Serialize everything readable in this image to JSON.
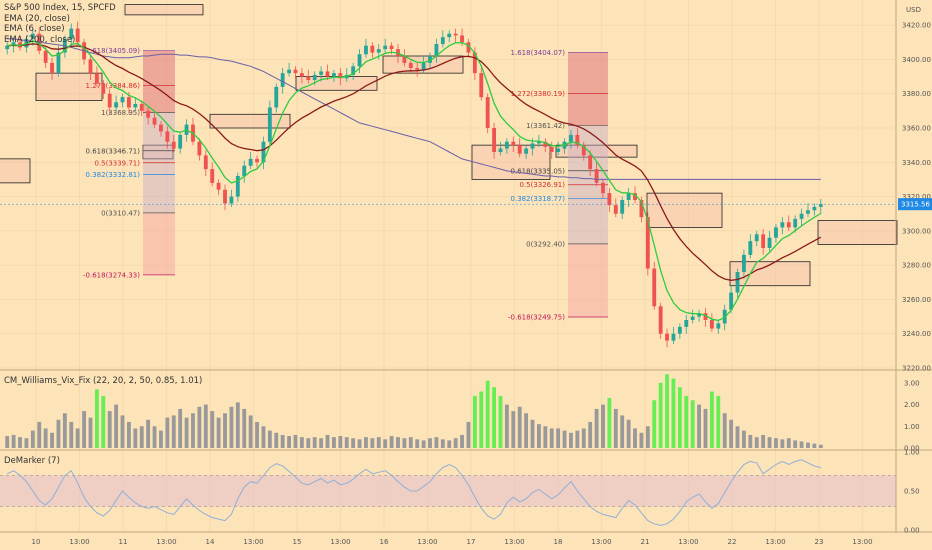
{
  "header": {
    "title": "S&P 500 Index, 15, SPCFD",
    "studies": [
      "EMA (20, close)",
      "EMA (6, close)",
      "EMA (200, close)"
    ]
  },
  "colors": {
    "background": "#fde3b8",
    "up": "#26a69a",
    "down": "#ef5350",
    "ema_fast": "#2ecc40",
    "ema_mid": "#8b1a1a",
    "ema_slow": "#6a5fa8",
    "vix_green": "#66ee55",
    "vix_gray": "#999999",
    "demarker": "#8fb0d8",
    "band": "#e8c4c8",
    "price_tag": "#1e88e5"
  },
  "price_axis": {
    "currency": "USD",
    "ticks": [
      "3420.00",
      "3400.00",
      "3380.00",
      "3360.00",
      "3340.00",
      "3320.00",
      "3300.00",
      "3280.00",
      "3260.00",
      "3240.00",
      "3220.00"
    ],
    "last_price": "3315.56"
  },
  "time_axis": {
    "labels": [
      "10",
      "13:00",
      "11",
      "13:00",
      "14",
      "13:00",
      "15",
      "13:00",
      "16",
      "13:00",
      "17",
      "13:00",
      "18",
      "13:00",
      "21",
      "13:00",
      "22",
      "13:00",
      "23",
      "13:00"
    ]
  },
  "fib_left": {
    "levels": [
      "1.618(3405.09)",
      "1.272(3384.86)",
      "1(3368.95)",
      "0.618(3346.71)",
      "0.5(3339.71)",
      "0.382(3332.81)",
      "0(3310.47)",
      "-0.618(3274.33)"
    ]
  },
  "fib_right": {
    "levels": [
      "1.618(3404.07)",
      "1.272(3380.19)",
      "1(3361.42)",
      "0.618(3335.05)",
      "0.5(3326.91)",
      "0.382(3318.77)",
      "0(3292.40)",
      "-0.618(3249.75)"
    ]
  },
  "vix_pane": {
    "label": "CM_Williams_Vix_Fix (22, 20, 2, 50, 0.85, 1.01)",
    "ticks": [
      "3.00",
      "2.00",
      "1.00",
      "0.00"
    ]
  },
  "demarker_pane": {
    "label": "DeMarker (7)",
    "ticks": [
      "1.00",
      "0.50",
      "0.00"
    ]
  },
  "chart_data": {
    "type": "candlestick",
    "symbol": "S&P 500 Index",
    "interval": "15",
    "ylim": [
      3220,
      3430
    ],
    "closes": [
      3408,
      3410,
      3407,
      3412,
      3415,
      3405,
      3398,
      3392,
      3404,
      3412,
      3418,
      3410,
      3400,
      3392,
      3386,
      3380,
      3372,
      3375,
      3378,
      3372,
      3374,
      3370,
      3366,
      3362,
      3358,
      3352,
      3348,
      3356,
      3362,
      3352,
      3344,
      3336,
      3328,
      3324,
      3316,
      3320,
      3332,
      3338,
      3342,
      3340,
      3352,
      3372,
      3384,
      3392,
      3394,
      3392,
      3390,
      3388,
      3391,
      3393,
      3390,
      3392,
      3389,
      3391,
      3396,
      3403,
      3408,
      3404,
      3406,
      3408,
      3406,
      3402,
      3398,
      3395,
      3394,
      3398,
      3402,
      3409,
      3413,
      3415,
      3414,
      3410,
      3404,
      3392,
      3378,
      3360,
      3346,
      3348,
      3352,
      3350,
      3345,
      3348,
      3351,
      3352,
      3349,
      3346,
      3348,
      3352,
      3356,
      3350,
      3344,
      3336,
      3328,
      3322,
      3315,
      3310,
      3318,
      3322,
      3318,
      3308,
      3278,
      3256,
      3240,
      3236,
      3240,
      3244,
      3248,
      3250,
      3252,
      3248,
      3243,
      3246,
      3254,
      3264,
      3276,
      3286,
      3294,
      3298,
      3290,
      3296,
      3302,
      3305,
      3302,
      3307,
      3310,
      3312,
      3314,
      3315.56
    ],
    "ema200": [
      3412,
      3412,
      3411.5,
      3411,
      3410.5,
      3410,
      3409.5,
      3409,
      3408.5,
      3408,
      3407,
      3406,
      3405,
      3404,
      3403,
      3402,
      3401.5,
      3401,
      3401,
      3401,
      3401.5,
      3402,
      3402,
      3402.5,
      3403,
      3403,
      3403,
      3402.5,
      3402.5,
      3402,
      3401.5,
      3401.5,
      3401,
      3400,
      3399.5,
      3399,
      3398,
      3397,
      3396,
      3394.5,
      3393,
      3391,
      3389,
      3387,
      3385,
      3383,
      3381,
      3379,
      3377,
      3375,
      3373,
      3371,
      3369,
      3367,
      3365,
      3363,
      3362,
      3361,
      3360,
      3359,
      3358,
      3357,
      3356,
      3355,
      3354,
      3353,
      3352,
      3350,
      3348,
      3346,
      3344,
      3342,
      3341,
      3340,
      3339,
      3338,
      3337,
      3336,
      3335,
      3334.5,
      3334,
      3333.5,
      3333,
      3332.5,
      3332,
      3332,
      3331.5,
      3331.5,
      3331,
      3331,
      3330.5,
      3330.5,
      3330,
      3330,
      3330,
      3330,
      3330,
      3330,
      3330,
      3330,
      3330,
      3330,
      3330,
      3330,
      3330,
      3330,
      3330,
      3330,
      3330,
      3330,
      3330,
      3330,
      3330,
      3330,
      3330,
      3330,
      3330,
      3330,
      3330,
      3330,
      3330,
      3330,
      3330,
      3330,
      3330,
      3330,
      3330,
      3330
    ],
    "vix_fix": [
      0.55,
      0.6,
      0.5,
      0.45,
      0.8,
      1.2,
      0.9,
      0.7,
      1.3,
      1.6,
      1.2,
      0.9,
      1.7,
      1.4,
      2.7,
      2.4,
      1.7,
      2.0,
      1.5,
      1.2,
      0.9,
      1.0,
      1.3,
      1.0,
      0.8,
      1.4,
      1.5,
      1.8,
      1.4,
      1.6,
      1.9,
      2.0,
      1.7,
      1.4,
      1.6,
      1.9,
      2.1,
      1.8,
      1.5,
      1.2,
      1.0,
      0.8,
      0.7,
      0.6,
      0.55,
      0.6,
      0.5,
      0.45,
      0.5,
      0.45,
      0.6,
      0.5,
      0.55,
      0.5,
      0.45,
      0.4,
      0.5,
      0.45,
      0.5,
      0.4,
      0.55,
      0.5,
      0.45,
      0.5,
      0.4,
      0.35,
      0.45,
      0.5,
      0.4,
      0.35,
      0.45,
      0.6,
      1.2,
      2.4,
      2.6,
      3.1,
      2.8,
      2.4,
      2.0,
      1.7,
      1.9,
      1.6,
      1.3,
      1.1,
      1.0,
      0.9,
      0.9,
      0.8,
      0.7,
      0.8,
      0.9,
      1.2,
      1.8,
      2.0,
      2.3,
      1.8,
      1.5,
      1.3,
      0.9,
      0.7,
      1.0,
      2.2,
      3.0,
      3.4,
      3.2,
      2.8,
      2.4,
      2.2,
      2.0,
      1.8,
      2.6,
      2.4,
      1.6,
      1.3,
      1.0,
      0.8,
      0.6,
      0.5,
      0.6,
      0.5,
      0.45,
      0.4,
      0.45,
      0.35,
      0.3,
      0.25,
      0.2,
      0.15
    ],
    "demarker": [
      0.72,
      0.76,
      0.7,
      0.62,
      0.5,
      0.38,
      0.32,
      0.4,
      0.55,
      0.7,
      0.76,
      0.6,
      0.42,
      0.3,
      0.22,
      0.18,
      0.25,
      0.38,
      0.5,
      0.42,
      0.35,
      0.3,
      0.28,
      0.3,
      0.26,
      0.22,
      0.2,
      0.3,
      0.4,
      0.32,
      0.25,
      0.2,
      0.16,
      0.14,
      0.12,
      0.2,
      0.4,
      0.55,
      0.62,
      0.6,
      0.7,
      0.8,
      0.85,
      0.82,
      0.75,
      0.68,
      0.6,
      0.58,
      0.62,
      0.66,
      0.6,
      0.64,
      0.58,
      0.6,
      0.65,
      0.72,
      0.78,
      0.72,
      0.74,
      0.76,
      0.7,
      0.62,
      0.55,
      0.5,
      0.5,
      0.56,
      0.62,
      0.72,
      0.8,
      0.84,
      0.8,
      0.7,
      0.58,
      0.42,
      0.28,
      0.18,
      0.14,
      0.2,
      0.35,
      0.42,
      0.36,
      0.4,
      0.48,
      0.52,
      0.46,
      0.4,
      0.45,
      0.54,
      0.62,
      0.5,
      0.4,
      0.3,
      0.24,
      0.2,
      0.18,
      0.16,
      0.28,
      0.38,
      0.32,
      0.22,
      0.12,
      0.08,
      0.06,
      0.08,
      0.14,
      0.24,
      0.36,
      0.42,
      0.46,
      0.36,
      0.28,
      0.34,
      0.48,
      0.62,
      0.74,
      0.84,
      0.88,
      0.86,
      0.72,
      0.78,
      0.84,
      0.88,
      0.84,
      0.88,
      0.9,
      0.86,
      0.82,
      0.8
    ],
    "vix_ylim": [
      0,
      3.5
    ],
    "demarker_ylim": [
      0,
      1
    ],
    "demarker_band": [
      0.3,
      0.7
    ]
  }
}
